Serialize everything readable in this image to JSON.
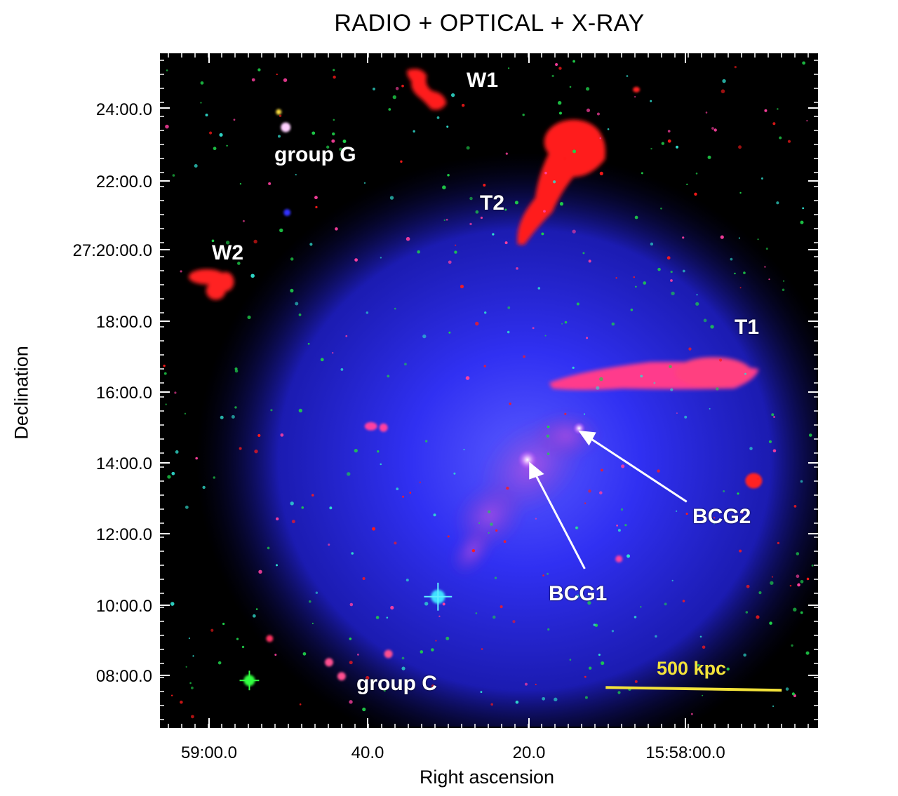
{
  "title": "RADIO + OPTICAL + X-RAY",
  "axes": {
    "y_title": "Declination",
    "x_title": "Right ascension",
    "dec_ticks": [
      "24:00.0",
      "22:00.0",
      "27:20:00.0",
      "18:00.0",
      "16:00.0",
      "14:00.0",
      "12:00.0",
      "10:00.0",
      "08:00.0"
    ],
    "ra_ticks": [
      "59:00.0",
      "40.0",
      "20.0",
      "15:58:00.0"
    ]
  },
  "labels": {
    "w1": "W1",
    "group_g": "group G",
    "t2": "T2",
    "w2": "W2",
    "t1": "T1",
    "bcg2": "BCG2",
    "bcg1": "BCG1",
    "group_c": "group C"
  },
  "scale_bar": {
    "label": "500 kpc",
    "color": "#f2e23a"
  },
  "colors": {
    "radio": "#ff1a1a",
    "optical": "#1fd14a",
    "xray": "#1f1fd8"
  }
}
